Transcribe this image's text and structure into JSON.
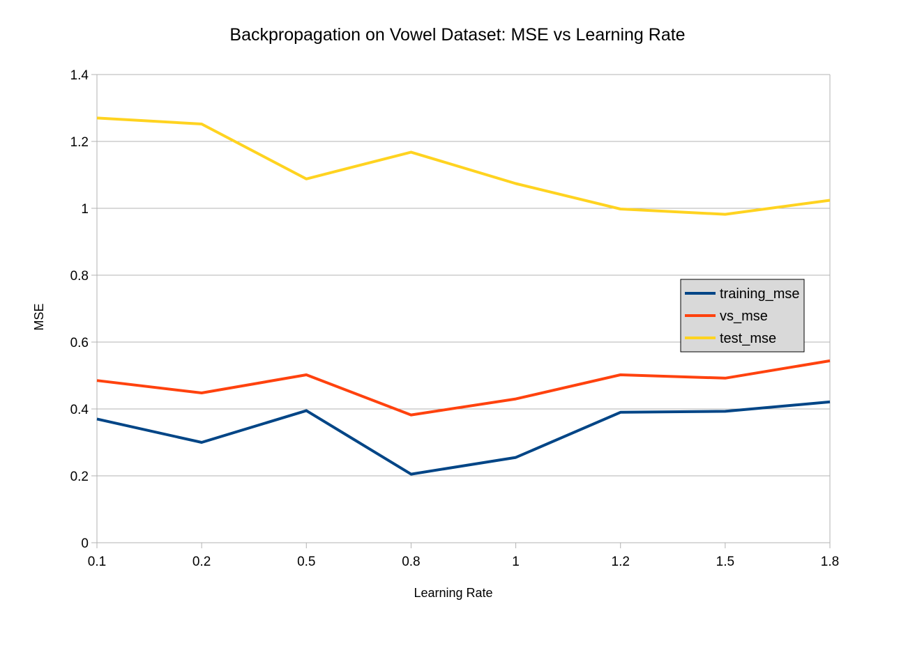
{
  "chart_data": {
    "type": "line",
    "title": "Backpropagation on Vowel Dataset: MSE vs Learning Rate",
    "xlabel": "Learning Rate",
    "ylabel": "MSE",
    "categories": [
      "0.1",
      "0.2",
      "0.5",
      "0.8",
      "1",
      "1.2",
      "1.5",
      "1.8"
    ],
    "y_ticks": [
      "0",
      "0.2",
      "0.4",
      "0.6",
      "0.8",
      "1",
      "1.2",
      "1.4"
    ],
    "ylim": [
      0,
      1.4
    ],
    "grid": true,
    "legend_position": "right",
    "series": [
      {
        "name": "training_mse",
        "color": "#004586",
        "values": [
          0.37,
          0.3,
          0.395,
          0.205,
          0.255,
          0.39,
          0.393,
          0.421
        ]
      },
      {
        "name": "vs_mse",
        "color": "#ff420e",
        "values": [
          0.485,
          0.448,
          0.502,
          0.382,
          0.43,
          0.502,
          0.492,
          0.544
        ]
      },
      {
        "name": "test_mse",
        "color": "#ffd320",
        "values": [
          1.27,
          1.252,
          1.088,
          1.168,
          1.074,
          0.998,
          0.982,
          1.024
        ]
      }
    ]
  }
}
